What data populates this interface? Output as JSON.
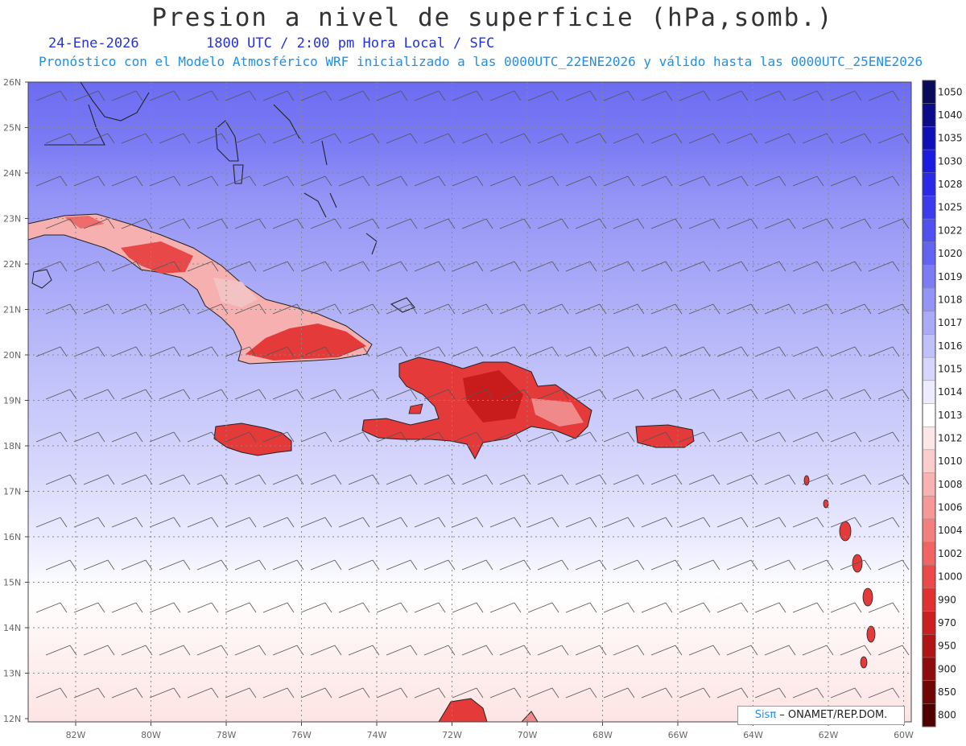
{
  "title": "Presion a nivel de superficie (hPa,somb.)",
  "date": "24-Ene-2026",
  "time_info": "1800 UTC / 2:00 pm Hora Local / SFC",
  "forecast_info": "Pronóstico con el Modelo Atmosférico WRF inicializado a las 0000UTC_22ENE2026 y válido hasta las  0000UTC_25ENE2026",
  "lat_labels": [
    "26N",
    "25N",
    "24N",
    "23N",
    "22N",
    "21N",
    "20N",
    "19N",
    "18N",
    "17N",
    "16N",
    "15N",
    "14N",
    "13N",
    "12N"
  ],
  "lon_labels": [
    "82W",
    "80W",
    "78W",
    "76W",
    "74W",
    "72W",
    "70W",
    "68W",
    "66W",
    "64W",
    "62W",
    "60W"
  ],
  "colorbar": {
    "levels": [
      "1050",
      "1040",
      "1035",
      "1030",
      "1028",
      "1025",
      "1022",
      "1020",
      "1019",
      "1018",
      "1017",
      "1016",
      "1015",
      "1014",
      "1013",
      "1012",
      "1010",
      "1008",
      "1006",
      "1004",
      "1002",
      "1000",
      "990",
      "970",
      "950",
      "900",
      "850",
      "800"
    ],
    "colors": [
      "#0a0a5a",
      "#0c0c8a",
      "#1010b8",
      "#1a1ae0",
      "#2a2ae6",
      "#3c3cec",
      "#5050f0",
      "#6464f2",
      "#7c7cf4",
      "#9494f6",
      "#aaaaf8",
      "#c0c0fa",
      "#d6d6fc",
      "#ececfe",
      "#ffffff",
      "#fde6e6",
      "#fbcdcd",
      "#f9b2b2",
      "#f69898",
      "#f37f7f",
      "#f06464",
      "#ec4a4a",
      "#e03030",
      "#cc1f1f",
      "#b01414",
      "#900c0c",
      "#700606",
      "#500000"
    ]
  },
  "credit": {
    "logo": "Sisπ",
    "text": " – ONAMET/REP.DOM."
  }
}
